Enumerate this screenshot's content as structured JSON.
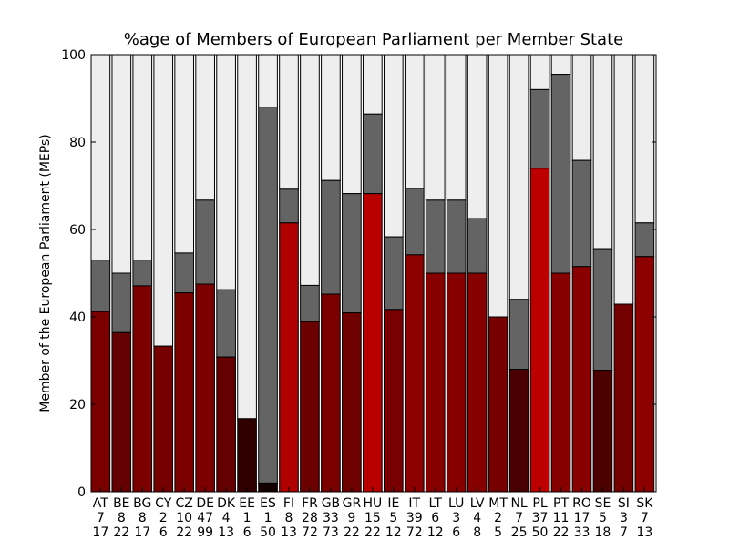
{
  "chart_data": {
    "type": "bar",
    "stacked": true,
    "title": "%age of Members of European Parliament per Member State",
    "xlabel": "",
    "ylabel": "Member of the European Parliament (MEPs)",
    "ylim": [
      0,
      100
    ],
    "yticks": [
      "0",
      "20",
      "40",
      "60",
      "80",
      "100"
    ],
    "grid": false,
    "categories": [
      "AT",
      "BE",
      "BG",
      "CY",
      "CZ",
      "DE",
      "DK",
      "EE",
      "ES",
      "FI",
      "FR",
      "GB",
      "GR",
      "HU",
      "IE",
      "IT",
      "LT",
      "LU",
      "LV",
      "MT",
      "NL",
      "PL",
      "PT",
      "RO",
      "SE",
      "SI",
      "SK"
    ],
    "tick_line2": [
      "7",
      "8",
      "8",
      "2",
      "10",
      "47",
      "4",
      "1",
      "1",
      "8",
      "28",
      "33",
      "9",
      "15",
      "5",
      "39",
      "6",
      "3",
      "4",
      "2",
      "7",
      "37",
      "11",
      "17",
      "5",
      "3",
      "7"
    ],
    "tick_line3": [
      "17",
      "22",
      "17",
      "6",
      "22",
      "99",
      "13",
      "6",
      "50",
      "13",
      "72",
      "73",
      "22",
      "22",
      "12",
      "72",
      "12",
      "6",
      "8",
      "5",
      "25",
      "50",
      "22",
      "33",
      "18",
      "7",
      "13"
    ],
    "bottom_values": [
      41.2,
      36.4,
      47.1,
      33.3,
      45.5,
      47.5,
      30.8,
      16.7,
      2.0,
      61.5,
      38.9,
      45.2,
      40.9,
      68.2,
      41.7,
      54.2,
      50.0,
      50.0,
      50.0,
      40.0,
      28.0,
      74.0,
      50.0,
      51.5,
      27.8,
      42.9,
      53.8
    ],
    "middle_values": [
      11.8,
      13.6,
      5.9,
      0.0,
      9.1,
      19.2,
      15.4,
      0.0,
      86.0,
      7.7,
      8.3,
      26.0,
      27.3,
      18.2,
      16.6,
      15.2,
      16.7,
      16.7,
      12.5,
      0.0,
      16.0,
      18.0,
      45.5,
      24.3,
      27.8,
      0.0,
      7.7
    ],
    "bottom_colors": [
      "#7a0000",
      "#640000",
      "#7c0000",
      "#740000",
      "#7a0000",
      "#7c0000",
      "#640000",
      "#300000",
      "#140000",
      "#b00000",
      "#6a0000",
      "#7a0000",
      "#6e0000",
      "#b80000",
      "#780000",
      "#8c0000",
      "#860000",
      "#860000",
      "#860000",
      "#760000",
      "#4a0000",
      "#bc0000",
      "#860000",
      "#880000",
      "#4c0000",
      "#740000",
      "#8c0000"
    ],
    "middle_color": "#646464",
    "top_color": "#eeeeee"
  }
}
